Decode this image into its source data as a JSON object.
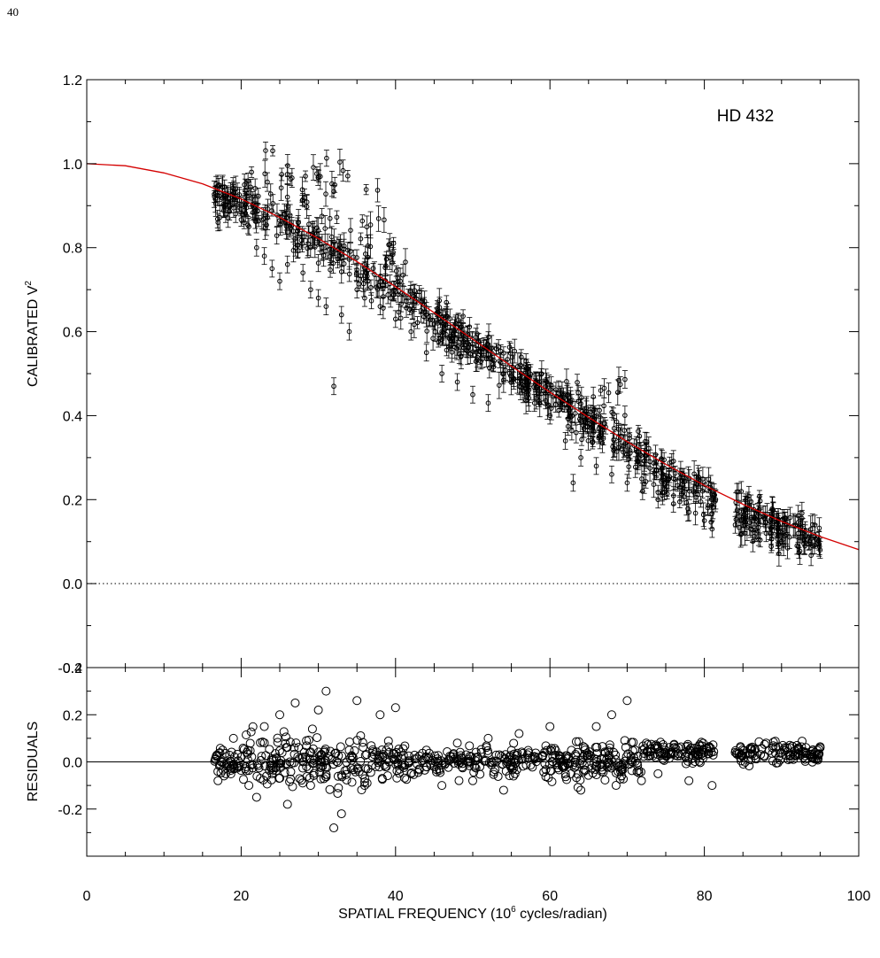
{
  "page_number": "40",
  "chart_data": [
    {
      "type": "scatter",
      "panel": "top",
      "annotation": "HD 432",
      "xlabel": "SPATIAL FREQUENCY (10^6 cycles/radian)",
      "xlabel_parts": {
        "pre": "SPATIAL FREQUENCY (10",
        "sup": "6",
        "post": " cycles/radian)"
      },
      "ylabel": "CALIBRATED V²",
      "ylabel_parts": {
        "main": "CALIBRATED V",
        "sup": "2"
      },
      "xlim": [
        0,
        100
      ],
      "ylim": [
        -0.2,
        1.2
      ],
      "xticks": [
        "0",
        "20",
        "40",
        "60",
        "80",
        "100"
      ],
      "yticks": [
        "-0.2",
        "0.0",
        "0.2",
        "0.4",
        "0.6",
        "0.8",
        "1.0",
        "1.2"
      ],
      "zero_line": "dotted",
      "series": [
        {
          "role": "data",
          "marker": "circle-with-errorbars",
          "color": "#000000",
          "points_sample": [
            [
              17,
              0.86
            ],
            [
              18,
              0.88
            ],
            [
              19,
              0.93
            ],
            [
              20,
              0.9
            ],
            [
              21,
              0.85
            ],
            [
              22,
              0.8
            ],
            [
              23,
              0.78
            ],
            [
              24,
              0.75
            ],
            [
              25,
              0.72
            ],
            [
              26,
              0.76
            ],
            [
              27,
              0.8
            ],
            [
              28,
              0.74
            ],
            [
              29,
              0.7
            ],
            [
              30,
              0.68
            ],
            [
              31,
              0.66
            ],
            [
              32,
              0.47
            ],
            [
              33,
              0.64
            ],
            [
              34,
              0.6
            ],
            [
              35,
              0.7
            ],
            [
              36,
              0.68
            ],
            [
              38,
              0.66
            ],
            [
              40,
              0.63
            ],
            [
              42,
              0.6
            ],
            [
              44,
              0.55
            ],
            [
              46,
              0.5
            ],
            [
              48,
              0.48
            ],
            [
              50,
              0.45
            ],
            [
              52,
              0.43
            ],
            [
              54,
              0.5
            ],
            [
              56,
              0.47
            ],
            [
              58,
              0.43
            ],
            [
              60,
              0.4
            ],
            [
              62,
              0.34
            ],
            [
              63,
              0.24
            ],
            [
              64,
              0.3
            ],
            [
              66,
              0.28
            ],
            [
              68,
              0.26
            ],
            [
              70,
              0.24
            ],
            [
              72,
              0.22
            ],
            [
              74,
              0.2
            ],
            [
              76,
              0.19
            ],
            [
              78,
              0.17
            ],
            [
              80,
              0.15
            ],
            [
              81,
              0.13
            ],
            [
              84,
              0.14
            ],
            [
              86,
              0.13
            ],
            [
              88,
              0.12
            ],
            [
              90,
              0.1
            ],
            [
              92,
              0.09
            ],
            [
              94,
              0.09
            ],
            [
              95,
              0.08
            ]
          ],
          "upper_envelope": [
            [
              18,
              0.95
            ],
            [
              20,
              1.02
            ],
            [
              24,
              1.05
            ],
            [
              28,
              1.08
            ],
            [
              31,
              1.1
            ],
            [
              33,
              1.08
            ],
            [
              36,
              1.0
            ],
            [
              38,
              0.95
            ],
            [
              40,
              0.85
            ],
            [
              42,
              0.75
            ],
            [
              50,
              0.62
            ],
            [
              56,
              0.58
            ],
            [
              62,
              0.52
            ],
            [
              68,
              0.5
            ],
            [
              70,
              0.52
            ],
            [
              72,
              0.32
            ],
            [
              80,
              0.22
            ],
            [
              86,
              0.17
            ],
            [
              95,
              0.16
            ]
          ]
        },
        {
          "role": "fit",
          "marker": "line",
          "color": "#d40000",
          "model": "uniform-disk",
          "x": [
            0,
            5,
            10,
            15,
            20,
            25,
            30,
            35,
            40,
            45,
            50,
            55,
            60,
            65,
            70,
            75,
            80,
            85,
            90,
            95,
            100
          ],
          "y": [
            1.0,
            0.995,
            0.978,
            0.952,
            0.916,
            0.872,
            0.822,
            0.767,
            0.707,
            0.645,
            0.582,
            0.518,
            0.456,
            0.396,
            0.338,
            0.284,
            0.234,
            0.189,
            0.148,
            0.112,
            0.081
          ]
        }
      ]
    },
    {
      "type": "scatter",
      "panel": "bottom",
      "ylabel": "RESIDUALS",
      "xlim": [
        0,
        100
      ],
      "ylim": [
        -0.4,
        0.4
      ],
      "xticks": [
        "0",
        "20",
        "40",
        "60",
        "80",
        "100"
      ],
      "yticks": [
        "-0.2",
        "0.0",
        "0.2",
        "0.4"
      ],
      "zero_line": "solid",
      "series": [
        {
          "role": "residuals",
          "marker": "open-circle",
          "color": "#000000",
          "points_sample": [
            [
              17,
              -0.08
            ],
            [
              18,
              -0.05
            ],
            [
              19,
              0.1
            ],
            [
              20,
              0.02
            ],
            [
              21,
              -0.1
            ],
            [
              22,
              -0.15
            ],
            [
              23,
              0.15
            ],
            [
              24,
              -0.05
            ],
            [
              25,
              0.2
            ],
            [
              26,
              -0.18
            ],
            [
              27,
              0.25
            ],
            [
              28,
              0.0
            ],
            [
              29,
              -0.1
            ],
            [
              30,
              0.22
            ],
            [
              31,
              0.3
            ],
            [
              32,
              -0.28
            ],
            [
              33,
              -0.22
            ],
            [
              34,
              0.05
            ],
            [
              35,
              0.26
            ],
            [
              36,
              -0.1
            ],
            [
              38,
              0.2
            ],
            [
              40,
              0.23
            ],
            [
              42,
              -0.05
            ],
            [
              44,
              0.05
            ],
            [
              46,
              -0.1
            ],
            [
              48,
              0.08
            ],
            [
              50,
              -0.08
            ],
            [
              52,
              0.1
            ],
            [
              54,
              -0.12
            ],
            [
              56,
              0.12
            ],
            [
              58,
              0.02
            ],
            [
              60,
              0.15
            ],
            [
              62,
              -0.05
            ],
            [
              64,
              -0.12
            ],
            [
              66,
              0.15
            ],
            [
              68,
              0.2
            ],
            [
              70,
              0.26
            ],
            [
              72,
              0.05
            ],
            [
              74,
              -0.05
            ],
            [
              76,
              0.06
            ],
            [
              78,
              -0.08
            ],
            [
              80,
              0.04
            ],
            [
              81,
              -0.1
            ],
            [
              84,
              0.04
            ],
            [
              86,
              0.06
            ],
            [
              88,
              0.08
            ],
            [
              90,
              0.04
            ],
            [
              92,
              0.07
            ],
            [
              94,
              0.05
            ],
            [
              95,
              0.06
            ]
          ]
        }
      ]
    }
  ]
}
